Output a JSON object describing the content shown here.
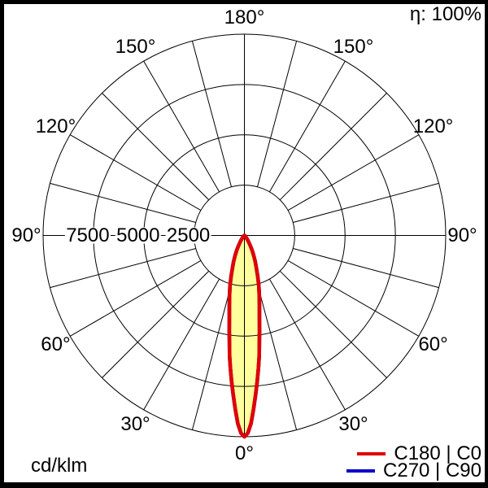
{
  "window": {
    "efficiency_label": "η: 100%",
    "unit_label": "cd/klm"
  },
  "legend": {
    "items": [
      {
        "label": "C180 | C0",
        "color": "#e10000"
      },
      {
        "label": "C270 | C90",
        "color": "#0000c8"
      }
    ]
  },
  "chart_data": {
    "type": "polar_line",
    "unit": "cd/klm",
    "efficiency_eta": "100%",
    "legend_position": "bottom-right",
    "background_color": "#ffffff",
    "grid_color": "#000000",
    "frame_color": "#000000",
    "angle_axis": {
      "grid_step_deg": 15,
      "label_step_deg": 30,
      "labels": [
        "0°",
        "30°",
        "60°",
        "90°",
        "120°",
        "150°",
        "180°"
      ],
      "mirrored": true,
      "zero_direction": "down"
    },
    "radial_axis": {
      "rings": [
        2500,
        5000,
        7500,
        10000
      ],
      "labeled_rings": [
        7500,
        5000,
        2500
      ],
      "max": 10000
    },
    "series": [
      {
        "name": "C180 | C0",
        "color": "#e10000",
        "fill": "#ffff9e",
        "symmetric": true,
        "gamma_deg": [
          0,
          1,
          2,
          3,
          4,
          5,
          6,
          7,
          8,
          9,
          10,
          12,
          14,
          16,
          18,
          20,
          22.5,
          25,
          27.5,
          30,
          35,
          40,
          45,
          50,
          60,
          75,
          90
        ],
        "cd_per_klm": [
          10000,
          9820,
          9350,
          8650,
          7950,
          7300,
          6650,
          6050,
          5350,
          4800,
          4300,
          3600,
          3050,
          2600,
          2150,
          1750,
          1400,
          1080,
          820,
          600,
          320,
          150,
          60,
          25,
          5,
          0,
          0
        ]
      },
      {
        "name": "C270 | C90",
        "color": "#0000c8",
        "fill": "#ffff9e",
        "symmetric": true,
        "gamma_deg": [
          0,
          1,
          2,
          3,
          4,
          5,
          6,
          7,
          8,
          9,
          10,
          12,
          14,
          16,
          18,
          20,
          22.5,
          25,
          27.5,
          30,
          35,
          40,
          45,
          50,
          60,
          75,
          90
        ],
        "cd_per_klm": [
          10000,
          9820,
          9350,
          8650,
          7950,
          7300,
          6650,
          6050,
          5350,
          4800,
          4300,
          3600,
          3050,
          2600,
          2150,
          1750,
          1400,
          1080,
          820,
          600,
          320,
          150,
          60,
          25,
          5,
          0,
          0
        ]
      }
    ]
  }
}
